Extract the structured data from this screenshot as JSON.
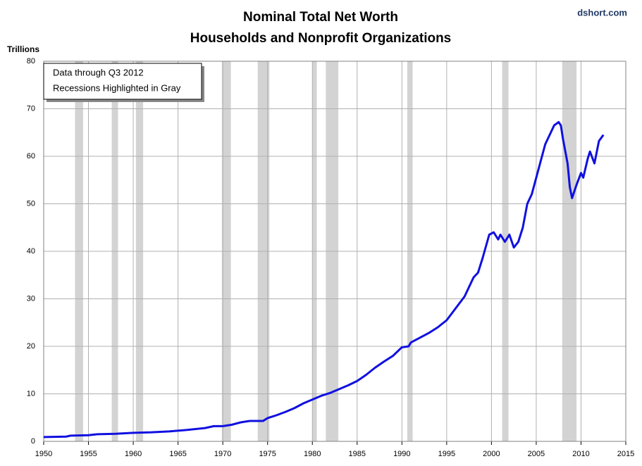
{
  "chart_data": {
    "type": "line",
    "title": "Nominal Total Net Worth",
    "subtitle": "Households and Nonprofit Organizations",
    "source": "dshort.com",
    "y_label": "Trillions",
    "annotation": [
      "Data through  Q3 2012",
      "Recessions Highlighted in Gray"
    ],
    "xlim": [
      1950,
      2015
    ],
    "xticks": [
      1950,
      1955,
      1960,
      1965,
      1970,
      1975,
      1980,
      1985,
      1990,
      1995,
      2000,
      2005,
      2010,
      2015
    ],
    "ylim": [
      0,
      80
    ],
    "yticks": [
      0,
      10,
      20,
      30,
      40,
      50,
      60,
      70,
      80
    ],
    "grid": true,
    "recession_color": "#d3d3d3",
    "recessions": [
      [
        1953.5,
        1954.4
      ],
      [
        1957.6,
        1958.3
      ],
      [
        1960.3,
        1961.1
      ],
      [
        1969.9,
        1970.9
      ],
      [
        1973.9,
        1975.2
      ],
      [
        1980.0,
        1980.5
      ],
      [
        1981.5,
        1982.9
      ],
      [
        1990.6,
        1991.2
      ],
      [
        2001.2,
        2001.9
      ],
      [
        2007.9,
        2009.5
      ]
    ],
    "x": [
      1950,
      1952.5,
      1953,
      1955,
      1956,
      1958,
      1960,
      1962,
      1964,
      1966,
      1968,
      1969,
      1970,
      1971,
      1972,
      1973,
      1974.5,
      1975,
      1976,
      1977,
      1978,
      1979,
      1980,
      1981,
      1982,
      1983,
      1984,
      1985,
      1986,
      1987,
      1988,
      1989,
      1990,
      1990.75,
      1991,
      1992,
      1993,
      1994,
      1995,
      1996,
      1997,
      1998,
      1998.5,
      1999,
      1999.75,
      2000.25,
      2000.75,
      2001,
      2001.5,
      2002,
      2002.5,
      2003,
      2003.5,
      2004,
      2004.5,
      2005,
      2005.5,
      2006,
      2006.5,
      2007,
      2007.5,
      2007.75,
      2008,
      2008.5,
      2008.75,
      2009,
      2009.5,
      2010,
      2010.25,
      2010.75,
      2011,
      2011.5,
      2012,
      2012.5
    ],
    "series": [
      {
        "color": "#1010e0",
        "values": [
          0.9,
          1.0,
          1.2,
          1.3,
          1.5,
          1.6,
          1.8,
          1.9,
          2.1,
          2.4,
          2.8,
          3.2,
          3.2,
          3.5,
          4.0,
          4.3,
          4.3,
          4.9,
          5.5,
          6.2,
          7.0,
          8.0,
          8.8,
          9.6,
          10.2,
          11.0,
          11.8,
          12.7,
          14.0,
          15.5,
          16.8,
          18.0,
          19.8,
          20.0,
          20.8,
          21.8,
          22.8,
          24.0,
          25.5,
          28.0,
          30.5,
          34.5,
          35.5,
          38.5,
          43.5,
          44.0,
          42.5,
          43.5,
          42.0,
          43.5,
          40.8,
          42.0,
          45.0,
          50.0,
          52.0,
          55.5,
          59.0,
          62.5,
          64.5,
          66.5,
          67.2,
          66.5,
          63.5,
          58.5,
          53.5,
          51.2,
          54.0,
          56.5,
          55.5,
          59.5,
          61.0,
          58.5,
          63.2,
          64.5
        ]
      }
    ]
  }
}
